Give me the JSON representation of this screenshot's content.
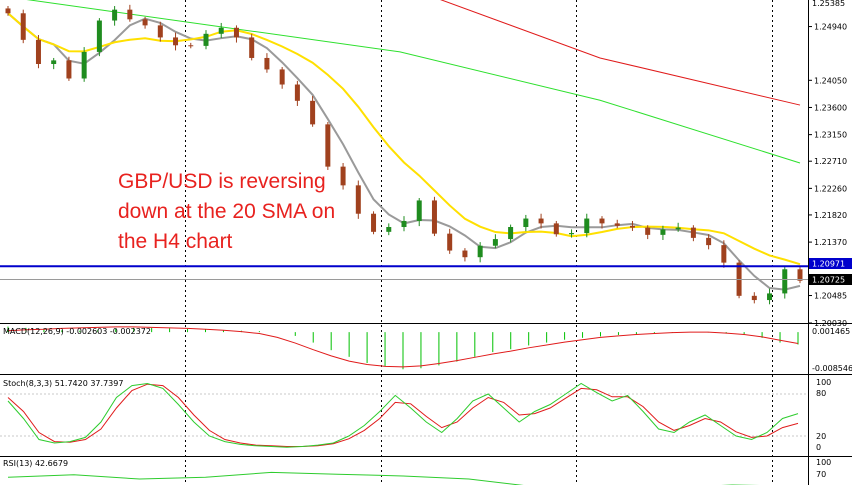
{
  "annotation": {
    "lines": [
      "GBP/USD is reversing",
      "down at the 20 SMA on",
      "the H4 chart"
    ],
    "color": "#e8221f"
  },
  "price_panel": {
    "axis_labels": [
      "1.24940",
      "1.24050",
      "1.23600",
      "1.23150",
      "1.22710",
      "1.22260",
      "1.21820",
      "1.21370",
      "1.20485",
      "1.20030"
    ],
    "top_cut_label": "1.25385",
    "support_label": "1.20971",
    "current_label": "1.20725",
    "support_color": "#0000cc",
    "bull_color": "#1f8c1f",
    "bear_color": "#a0411e",
    "sma20_color": "#9a9a9a",
    "sma50_color": "#ffe000",
    "sma100_color": "#2ee02e",
    "sma200_color": "#e01b1b"
  },
  "macd_panel": {
    "label": "MACD(12,26,9) -0.002603 -0.002372",
    "axis_labels": [
      "0.001465",
      "-0.008546"
    ],
    "hist_color": "#00c000",
    "signal_color": "#e01b1b"
  },
  "stoch_panel": {
    "label": "Stoch(8,3,3) 51.7420 37.7397",
    "axis_labels": [
      "100",
      "80",
      "20",
      "0"
    ],
    "main_color": "#2ecc2e",
    "signal_color": "#e01b1b"
  },
  "rsi_panel": {
    "label": "RSI(13) 42.6679",
    "axis_labels": [
      "100",
      "70"
    ],
    "line_color": "#2ecc2e"
  },
  "chart_data": {
    "type": "candlestick",
    "symbol": "GBP/USD",
    "timeframe": "H4",
    "ylim": [
      1.2003,
      1.2538
    ],
    "support_level": 1.20971,
    "current_price": 1.20725,
    "approx_closes": [
      1.2516,
      1.2472,
      1.2432,
      1.2438,
      1.2408,
      1.2452,
      1.2504,
      1.2522,
      1.2506,
      1.2496,
      1.2476,
      1.2463,
      1.2462,
      1.2482,
      1.2492,
      1.2476,
      1.2442,
      1.2423,
      1.2398,
      1.2371,
      1.2332,
      1.2262,
      1.2231,
      1.2184,
      1.2154,
      1.2162,
      1.2172,
      1.2206,
      1.2151,
      1.2123,
      1.2112,
      1.2131,
      1.2142,
      1.2162,
      1.2176,
      1.2168,
      1.215,
      1.2152,
      1.2176,
      1.2168,
      1.2164,
      1.2161,
      1.2149,
      1.2158,
      1.2161,
      1.2144,
      1.2132,
      1.2103,
      1.2048,
      1.2041,
      1.2052,
      1.2092,
      1.2073
    ],
    "macd_histogram": [
      0.00115,
      0.0009,
      0.0006,
      0.0004,
      0.0003,
      0.0005,
      0.0007,
      0.0009,
      0.0009,
      0.0008,
      0.0007,
      0.0006,
      0.0004,
      0.0003,
      0.0002,
      0.0,
      -0.0008,
      -0.0022,
      -0.0038,
      -0.0052,
      -0.0065,
      -0.0072,
      -0.0078,
      -0.0076,
      -0.007,
      -0.0062,
      -0.0052,
      -0.0042,
      -0.0036,
      -0.0028,
      -0.0022,
      -0.0016,
      -0.0012,
      -0.0009,
      -0.0006,
      -0.0004,
      -0.0002,
      -0.0001,
      0.0,
      -0.0001,
      -0.0003,
      -0.0006,
      -0.0012,
      -0.0022,
      -0.0026
    ],
    "macd_signal": [
      0.0003,
      0.0005,
      0.0006,
      0.0008,
      0.0009,
      0.001,
      0.0011,
      0.0011,
      0.001,
      0.0009,
      0.0008,
      0.0006,
      0.0004,
      0.0001,
      -0.0003,
      -0.0011,
      -0.0023,
      -0.0037,
      -0.005,
      -0.0061,
      -0.0068,
      -0.0072,
      -0.0073,
      -0.0071,
      -0.0066,
      -0.006,
      -0.0053,
      -0.0046,
      -0.004,
      -0.0033,
      -0.0027,
      -0.0021,
      -0.0016,
      -0.0011,
      -0.0008,
      -0.0005,
      -0.0003,
      -0.0001,
      0.0,
      0.0,
      -0.0002,
      -0.0005,
      -0.001,
      -0.0017,
      -0.0024
    ],
    "stoch_main": [
      70,
      45,
      15,
      10,
      12,
      18,
      40,
      75,
      92,
      95,
      88,
      65,
      40,
      20,
      12,
      8,
      6,
      5,
      4,
      5,
      7,
      10,
      20,
      35,
      55,
      78,
      60,
      40,
      25,
      45,
      70,
      80,
      60,
      40,
      55,
      65,
      80,
      95,
      82,
      70,
      78,
      55,
      30,
      25,
      40,
      50,
      35,
      20,
      15,
      25,
      45,
      52
    ],
    "stoch_signal": [
      75,
      55,
      25,
      12,
      11,
      15,
      30,
      60,
      85,
      94,
      92,
      75,
      50,
      28,
      15,
      10,
      7,
      6,
      5,
      5,
      6,
      9,
      16,
      28,
      45,
      68,
      66,
      48,
      32,
      40,
      60,
      75,
      68,
      50,
      52,
      60,
      74,
      88,
      86,
      76,
      76,
      62,
      40,
      28,
      35,
      45,
      40,
      26,
      18,
      20,
      32,
      38
    ],
    "rsi": [
      58,
      62,
      55,
      58,
      66,
      63,
      60,
      55,
      42,
      38,
      40,
      45,
      43
    ]
  }
}
